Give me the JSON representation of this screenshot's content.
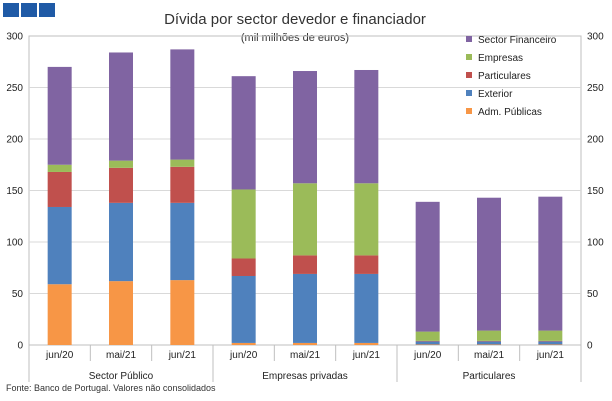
{
  "chart_data": {
    "type": "bar",
    "stacked": true,
    "title": "Dívida por sector devedor e financiador",
    "subtitle": "(mil milhões de euros)",
    "source": "Fonte: Banco de Portugal. Valores não consolidados",
    "ylim": [
      0,
      300
    ],
    "yticks": [
      0,
      50,
      100,
      150,
      200,
      250,
      300
    ],
    "groups": [
      {
        "name": "Sector Público",
        "categories": [
          "jun/20",
          "mai/21",
          "jun/21"
        ]
      },
      {
        "name": "Empresas privadas",
        "categories": [
          "jun/20",
          "mai/21",
          "jun/21"
        ]
      },
      {
        "name": "Particulares",
        "categories": [
          "jun/20",
          "mai/21",
          "jun/21"
        ]
      }
    ],
    "series": [
      {
        "name": "Adm. Públicas",
        "color": "#f79646",
        "values": [
          59,
          62,
          63,
          2,
          2,
          2,
          0.5,
          0.5,
          0.5
        ]
      },
      {
        "name": "Exterior",
        "color": "#4f81bd",
        "values": [
          75,
          76,
          75,
          65,
          67,
          67,
          3,
          3,
          3
        ]
      },
      {
        "name": "Particulares",
        "color": "#c0504d",
        "values": [
          34,
          34,
          35,
          17,
          18,
          18,
          0.5,
          0.5,
          0.5
        ]
      },
      {
        "name": "Empresas",
        "color": "#9bbb59",
        "values": [
          7,
          7,
          7,
          67,
          70,
          70,
          9,
          10,
          10
        ]
      },
      {
        "name": "Sector Financeiro",
        "color": "#8064a2",
        "values": [
          95,
          105,
          107,
          110,
          109,
          110,
          126,
          129,
          130
        ]
      }
    ],
    "legend_order": [
      "Sector Financeiro",
      "Empresas",
      "Particulares",
      "Exterior",
      "Adm. Públicas"
    ],
    "legend_position": "top-right"
  }
}
